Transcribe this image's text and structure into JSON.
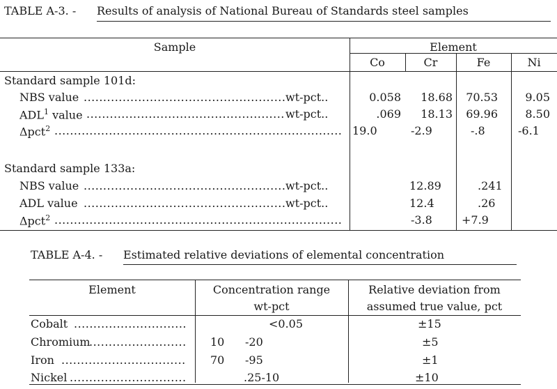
{
  "tableA3": {
    "label": "TABLE A-3. -",
    "title": "Results of analysis of National Bureau of Standards steel samples",
    "col_sample": "Sample",
    "col_element": "Element",
    "elements": [
      "Co",
      "Cr",
      "Fe",
      "Ni"
    ],
    "sample1_heading": "Standard sample 101d:",
    "sample1_rows": [
      {
        "label": "NBS value",
        "sup": "",
        "unit": "wt-pct..",
        "co": "0.058",
        "cr": "18.68",
        "fe": "70.53",
        "ni": "9.05"
      },
      {
        "label": "ADL",
        "sup": "1",
        "label_rest": " value",
        "unit": "wt-pct..",
        "co": ".069",
        "cr": "18.13",
        "fe": "69.96",
        "ni": "8.50"
      },
      {
        "label": "Δpct",
        "sup": "2",
        "unit": "",
        "co": "19.0",
        "cr": "-2.9",
        "fe": "-.8",
        "ni": "-6.1"
      }
    ],
    "sample2_heading": "Standard sample 133a:",
    "sample2_rows": [
      {
        "label": "NBS value",
        "unit": "wt-pct..",
        "cr": "12.89",
        "fe": ".241"
      },
      {
        "label": "ADL value",
        "unit": "wt-pct..",
        "cr": "12.4",
        "fe": ".26"
      },
      {
        "label": "Δpct",
        "sup": "2",
        "unit": "",
        "cr": "-3.8",
        "fe": "+7.9"
      }
    ]
  },
  "tableA4": {
    "label": "TABLE A-4. -",
    "title": "Estimated relative deviations of elemental concentration",
    "col_element": "Element",
    "col_range_line1": "Concentration range",
    "col_range_line2": "wt-pct",
    "col_dev_line1": "Relative deviation from",
    "col_dev_line2": "assumed true value, pct",
    "rows": [
      {
        "element": "Cobalt",
        "range_a": "<0.05",
        "range_b": "",
        "deviation": "±15"
      },
      {
        "element": "Chromium",
        "range_a": "10",
        "range_b": "-20",
        "deviation": "±5"
      },
      {
        "element": "Iron",
        "range_a": "70",
        "range_b": "-95",
        "deviation": "±1"
      },
      {
        "element": "Nickel",
        "range_a": ".25-10",
        "range_b": "",
        "deviation": "±10"
      }
    ]
  }
}
